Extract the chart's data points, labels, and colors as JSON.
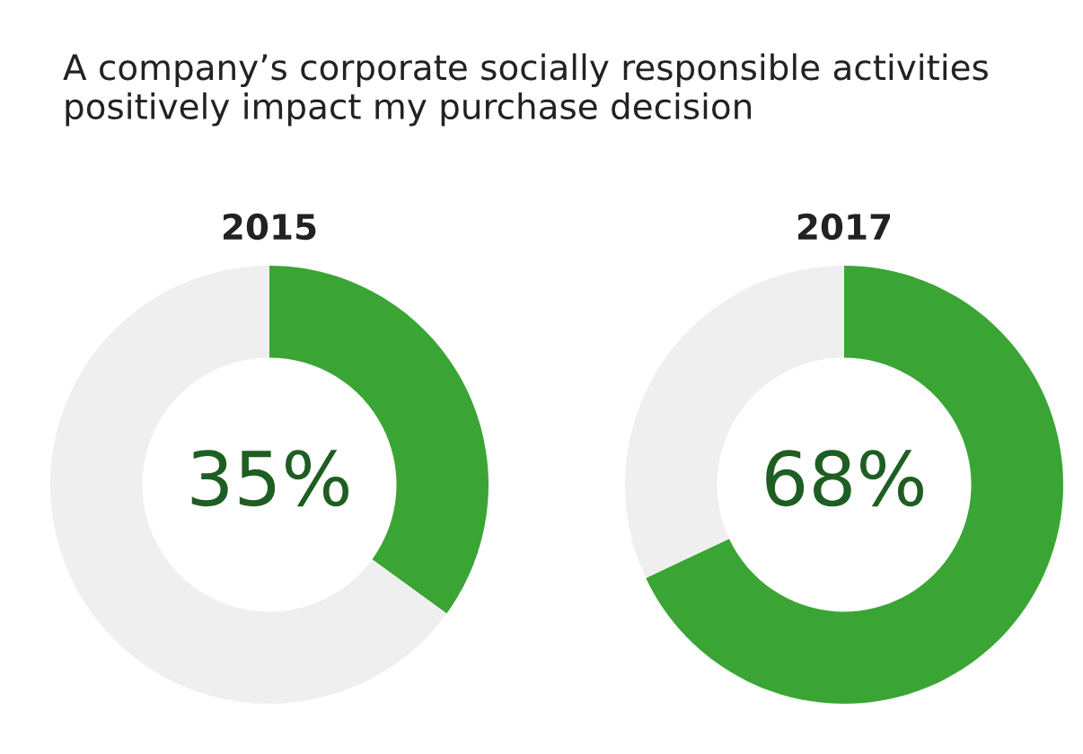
{
  "chart_data": [
    {
      "type": "donut",
      "title": "A company’s corporate socially responsible activities positively impact my purchase decision",
      "subtitle": "2015",
      "categories": [
        null,
        null
      ],
      "values": [
        35,
        65
      ],
      "colors": [
        "#3aa535",
        "#efefef"
      ],
      "value_labels": [
        "35%",
        null
      ]
    },
    {
      "type": "donut",
      "subtitle": "2017",
      "categories": [
        null,
        null
      ],
      "values": [
        68,
        32
      ],
      "colors": [
        "#3aa535",
        "#efefef"
      ],
      "value_labels": [
        "68%",
        null
      ]
    }
  ]
}
